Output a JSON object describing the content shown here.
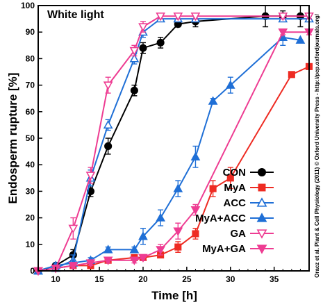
{
  "chart_data": {
    "type": "line",
    "title": "White light",
    "xlabel": "Time [h]",
    "ylabel": "Endosperm rupture [%]",
    "xlim": [
      8,
      39
    ],
    "ylim": [
      0,
      100
    ],
    "xticks": [
      10,
      15,
      20,
      25,
      30,
      35
    ],
    "yticks": [
      0,
      10,
      20,
      30,
      40,
      50,
      60,
      70,
      80,
      90,
      100
    ],
    "legend_position": "bottom-right",
    "side_note": "Oracz et al. Plant & Cell Physiology (2011) © Oxford University Press - http://pcp.oxfordjournals.org/",
    "series": [
      {
        "name": "CON",
        "color": "#000000",
        "marker": "circle",
        "filled": true,
        "x": [
          8,
          10,
          12,
          14,
          16,
          19,
          20,
          22,
          24,
          26,
          34,
          36,
          38
        ],
        "y": [
          0,
          2,
          6,
          30,
          47,
          68,
          84,
          86,
          93,
          94,
          96,
          96,
          96
        ],
        "err": [
          0,
          1,
          2,
          2,
          3,
          2,
          2,
          2,
          1,
          2,
          4,
          2,
          4
        ]
      },
      {
        "name": "MyA",
        "color": "#ee2b22",
        "marker": "square",
        "filled": true,
        "x": [
          8,
          10,
          12,
          14,
          16,
          19,
          20,
          22,
          24,
          26,
          28,
          30,
          37,
          39
        ],
        "y": [
          0,
          1,
          2,
          2,
          4,
          5,
          5,
          6,
          9,
          14,
          31,
          35,
          74,
          77
        ],
        "err": [
          0,
          1,
          2,
          2,
          1,
          1,
          1,
          1,
          2,
          2,
          3,
          4,
          0,
          0
        ]
      },
      {
        "name": "ACC",
        "color": "#1f6fd6",
        "marker": "triangle-up",
        "filled": false,
        "x": [
          8,
          10,
          12,
          14,
          16,
          19,
          20,
          22,
          24,
          26,
          36,
          39
        ],
        "y": [
          0,
          1,
          4,
          35,
          55,
          80,
          90,
          95,
          95,
          95,
          95,
          95
        ],
        "err": [
          0,
          1,
          2,
          3,
          2,
          2,
          2,
          1,
          1,
          1,
          1,
          1
        ]
      },
      {
        "name": "MyA+ACC",
        "color": "#1f6fd6",
        "marker": "triangle-up",
        "filled": true,
        "x": [
          8,
          10,
          12,
          14,
          16,
          19,
          20,
          22,
          24,
          26,
          28,
          30,
          36,
          38
        ],
        "y": [
          0,
          2,
          3,
          4,
          8,
          8,
          13,
          20,
          31,
          43,
          64,
          70,
          88,
          87
        ],
        "err": [
          0,
          1,
          1,
          1,
          1,
          1,
          3,
          3,
          3,
          4,
          1,
          3,
          3,
          0
        ]
      },
      {
        "name": "GA",
        "color": "#ee3c92",
        "marker": "triangle-down",
        "filled": false,
        "x": [
          8,
          10,
          12,
          14,
          16,
          19,
          20,
          22,
          24,
          26,
          36,
          39
        ],
        "y": [
          0,
          1,
          16,
          36,
          70,
          83,
          92,
          96,
          96,
          96,
          96,
          96
        ],
        "err": [
          0,
          1,
          4,
          3,
          3,
          2,
          2,
          1,
          1,
          1,
          1,
          1
        ]
      },
      {
        "name": "MyA+GA",
        "color": "#ee3c92",
        "marker": "triangle-down",
        "filled": true,
        "x": [
          8,
          10,
          12,
          14,
          16,
          19,
          20,
          22,
          24,
          26,
          36,
          39
        ],
        "y": [
          0,
          1,
          2,
          3,
          4,
          4,
          5,
          8,
          15,
          23,
          90,
          90
        ],
        "err": [
          0,
          1,
          1,
          1,
          1,
          1,
          1,
          2,
          3,
          2,
          1,
          1
        ]
      }
    ]
  }
}
